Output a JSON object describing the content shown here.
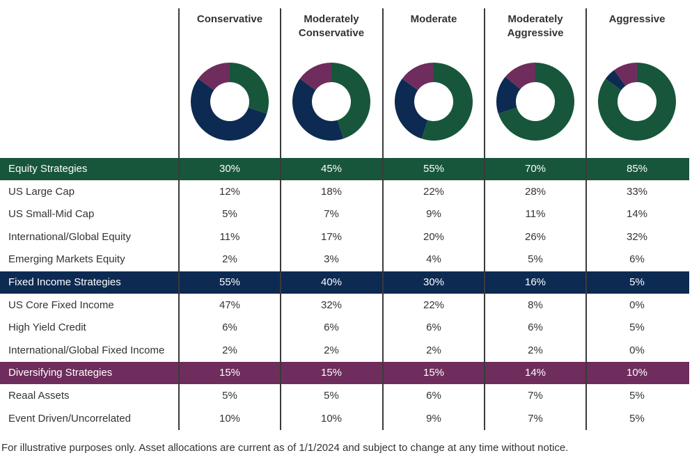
{
  "colors": {
    "equity": "#17563b",
    "fixed_income": "#0d2a52",
    "diversifying": "#6e2d5c"
  },
  "chart_data": {
    "type": "table",
    "columns": [
      "Conservative",
      "Moderately Conservative",
      "Moderate",
      "Moderately Aggressive",
      "Aggressive"
    ],
    "donuts": [
      {
        "portfolio": "Conservative",
        "slices": [
          30,
          55,
          15
        ]
      },
      {
        "portfolio": "Moderately Conservative",
        "slices": [
          45,
          40,
          15
        ]
      },
      {
        "portfolio": "Moderate",
        "slices": [
          55,
          30,
          15
        ]
      },
      {
        "portfolio": "Moderately Aggressive",
        "slices": [
          70,
          16,
          14
        ]
      },
      {
        "portfolio": "Aggressive",
        "slices": [
          85,
          5,
          10
        ]
      }
    ],
    "rows": [
      {
        "label": "Equity Strategies",
        "category": "equity",
        "values": [
          "30%",
          "45%",
          "55%",
          "70%",
          "85%"
        ]
      },
      {
        "label": "US Large Cap",
        "values": [
          "12%",
          "18%",
          "22%",
          "28%",
          "33%"
        ]
      },
      {
        "label": "US Small-Mid Cap",
        "values": [
          "5%",
          "7%",
          "9%",
          "11%",
          "14%"
        ]
      },
      {
        "label": "International/Global Equity",
        "values": [
          "11%",
          "17%",
          "20%",
          "26%",
          "32%"
        ]
      },
      {
        "label": "Emerging Markets Equity",
        "values": [
          "2%",
          "3%",
          "4%",
          "5%",
          "6%"
        ]
      },
      {
        "label": "Fixed Income Strategies",
        "category": "fixed_income",
        "values": [
          "55%",
          "40%",
          "30%",
          "16%",
          "5%"
        ]
      },
      {
        "label": "US Core Fixed Income",
        "values": [
          "47%",
          "32%",
          "22%",
          "8%",
          "0%"
        ]
      },
      {
        "label": "High Yield Credit",
        "values": [
          "6%",
          "6%",
          "6%",
          "6%",
          "5%"
        ]
      },
      {
        "label": "International/Global Fixed Income",
        "values": [
          "2%",
          "2%",
          "2%",
          "2%",
          "0%"
        ]
      },
      {
        "label": "Diversifying Strategies",
        "category": "diversifying",
        "values": [
          "15%",
          "15%",
          "15%",
          "14%",
          "10%"
        ]
      },
      {
        "label": "Reaal Assets",
        "values": [
          "5%",
          "5%",
          "6%",
          "7%",
          "5%"
        ]
      },
      {
        "label": "Event Driven/Uncorrelated",
        "values": [
          "10%",
          "10%",
          "9%",
          "7%",
          "5%"
        ]
      }
    ]
  },
  "footnote": "For illustrative purposes only. Asset allocations are current as of 1/1/2024 and subject to change at any time without notice."
}
